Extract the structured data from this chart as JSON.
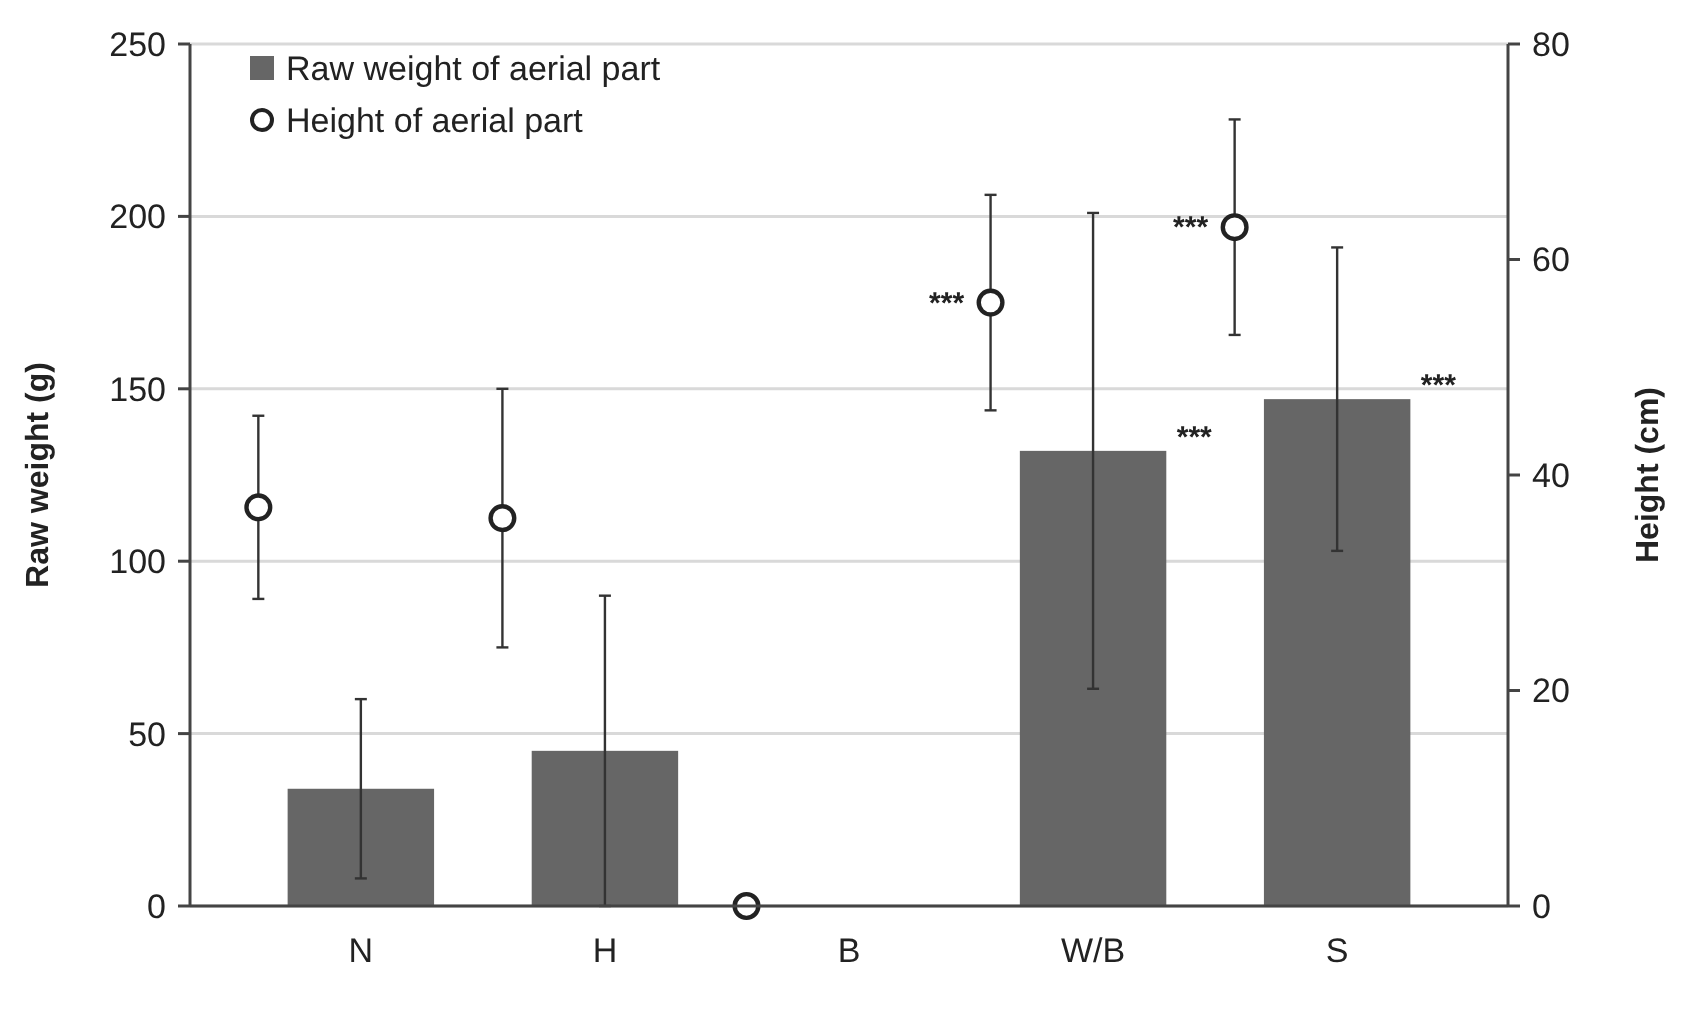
{
  "chart_data": {
    "type": "bar",
    "categories": [
      "N",
      "H",
      "B",
      "W/B",
      "S"
    ],
    "ylabel": "Raw weight (g)",
    "y2label": "Height (cm)",
    "ylim": [
      0,
      250
    ],
    "yticks": [
      0,
      50,
      100,
      150,
      200,
      250
    ],
    "y2lim": [
      0,
      80
    ],
    "y2ticks": [
      0,
      20,
      40,
      60,
      80
    ],
    "grid": "y",
    "legend": "top left",
    "series": [
      {
        "name": "Raw weight of aerial part",
        "color": "#666666",
        "values": [
          34,
          45,
          0,
          132,
          147
        ],
        "errors": [
          26,
          45,
          null,
          69,
          44
        ]
      },
      {
        "name": "Height of aerial part",
        "type": "scatter",
        "axis": "y2",
        "marker": "circle",
        "color": "#222222",
        "values": [
          37,
          36,
          0,
          56,
          63
        ],
        "errors": [
          8.5,
          12,
          null,
          10,
          10
        ]
      }
    ],
    "annotations": [
      "***",
      "***",
      "***",
      "***"
    ]
  }
}
